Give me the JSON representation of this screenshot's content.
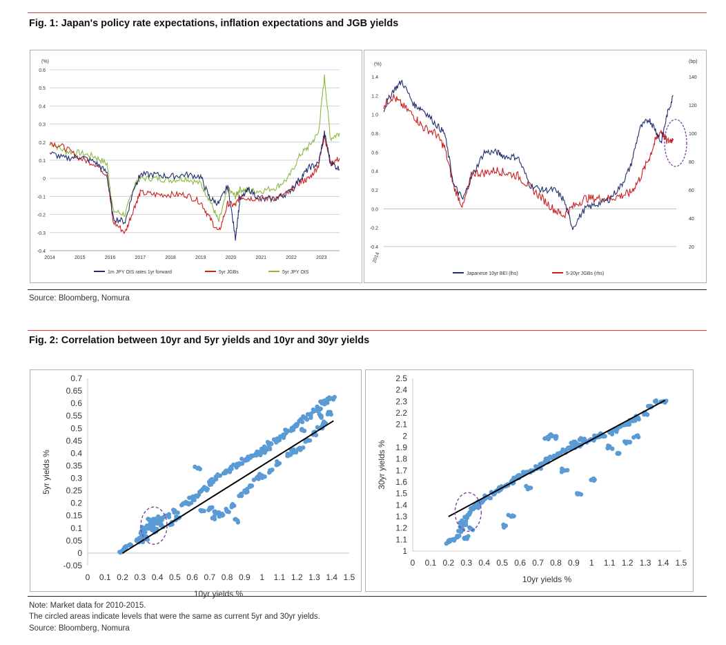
{
  "fig1": {
    "title": "Fig. 1: Japan's policy rate expectations, inflation expectations and JGB yields",
    "source": "Source: Bloomberg, Nomura"
  },
  "fig2": {
    "title": "Fig. 2: Correlation between 10yr and 5yr yields and 10yr and 30yr yields",
    "note_line1": "Note: Market data for 2010-2015.",
    "note_line2": "The circled areas indicate levels that were the same as current 5yr and 30yr yields.",
    "source": "Source: Bloomberg, Nomura"
  },
  "colors": {
    "navy": "#1f2d6b",
    "red": "#cc1f1f",
    "green": "#8ab83f",
    "scatter": "#5b9bd5",
    "circle": "#7b3fa0",
    "rule": "#d9383a"
  },
  "chart_data": [
    {
      "type": "line",
      "unit_label": "(%)",
      "x_ticks": [
        "2014",
        "2015",
        "2016",
        "2017",
        "2018",
        "2019",
        "2020",
        "2021",
        "2022",
        "2023"
      ],
      "y_ticks": [
        "0.6",
        "0.5",
        "0.4",
        "0.3",
        "0.2",
        "0.1",
        "0",
        "-0.1",
        "-0.2",
        "-0.3",
        "-0.4"
      ],
      "ylim": [
        -0.4,
        0.6
      ],
      "xlim": [
        2014,
        2023.6
      ],
      "legend": [
        "1m JPY OIS rates 1yr forward",
        "5yr JGBs",
        "5yr JPY OIS"
      ],
      "series": [
        {
          "name": "1m JPY OIS rates 1yr forward",
          "x": [
            2014,
            2014.5,
            2015,
            2015.5,
            2015.9,
            2016.1,
            2016.5,
            2016.8,
            2017,
            2017.5,
            2018,
            2018.5,
            2019,
            2019.3,
            2019.6,
            2019.9,
            2020.15,
            2020.3,
            2020.6,
            2021,
            2021.5,
            2021.9,
            2022.3,
            2022.6,
            2022.9,
            2023.1,
            2023.3,
            2023.6
          ],
          "y": [
            0.14,
            0.11,
            0.12,
            0.09,
            0.03,
            -0.22,
            -0.24,
            -0.05,
            0.02,
            0.02,
            0.01,
            0.02,
            0.01,
            -0.11,
            -0.14,
            -0.04,
            -0.33,
            -0.12,
            -0.06,
            -0.12,
            -0.11,
            -0.08,
            0.0,
            0.06,
            0.08,
            0.25,
            0.09,
            0.05
          ]
        },
        {
          "name": "5yr JGBs",
          "x": [
            2014,
            2014.5,
            2015,
            2015.5,
            2015.9,
            2016.1,
            2016.5,
            2016.8,
            2017,
            2017.5,
            2018,
            2018.5,
            2019,
            2019.3,
            2019.6,
            2019.9,
            2020.15,
            2020.3,
            2020.6,
            2021,
            2021.5,
            2021.9,
            2022.3,
            2022.6,
            2022.9,
            2023.1,
            2023.3,
            2023.6
          ],
          "y": [
            0.2,
            0.17,
            0.11,
            0.08,
            0.02,
            -0.24,
            -0.3,
            -0.16,
            -0.08,
            -0.09,
            -0.09,
            -0.09,
            -0.13,
            -0.22,
            -0.3,
            -0.14,
            -0.15,
            -0.1,
            -0.11,
            -0.11,
            -0.11,
            -0.08,
            -0.02,
            0.0,
            0.07,
            0.24,
            0.08,
            0.11
          ]
        },
        {
          "name": "5yr JPY OIS",
          "x": [
            2014,
            2014.5,
            2015,
            2015.5,
            2015.9,
            2016.1,
            2016.5,
            2016.8,
            2017,
            2017.5,
            2018,
            2018.5,
            2019,
            2019.3,
            2019.6,
            2019.9,
            2020.15,
            2020.3,
            2020.6,
            2021,
            2021.5,
            2021.9,
            2022.3,
            2022.6,
            2022.9,
            2023.1,
            2023.3,
            2023.6
          ],
          "y": [
            0.2,
            0.15,
            0.14,
            0.12,
            0.08,
            -0.18,
            -0.2,
            -0.04,
            0.0,
            0.0,
            -0.01,
            -0.0,
            -0.03,
            -0.12,
            -0.24,
            -0.06,
            -0.1,
            -0.06,
            -0.07,
            -0.07,
            -0.05,
            -0.0,
            0.13,
            0.18,
            0.25,
            0.56,
            0.22,
            0.25
          ]
        }
      ]
    },
    {
      "type": "line",
      "unit_label_left": "(%)",
      "unit_label_right": "(bp)",
      "x_ticks": [
        "2014"
      ],
      "y_ticks_left": [
        "1.4",
        "1.2",
        "1.0",
        "0.8",
        "0.6",
        "0.4",
        "0.2",
        "0.0",
        "-0.2",
        "-0.4"
      ],
      "y_ticks_right": [
        "140",
        "120",
        "100",
        "80",
        "60",
        "40",
        "20"
      ],
      "ylim_left": [
        -0.4,
        1.4
      ],
      "ylim_right": [
        20,
        140
      ],
      "legend": [
        "Japanese 10yr BEI (lhs)",
        "5-20yr JGBs (rhs)"
      ],
      "series": [
        {
          "name": "Japanese 10yr BEI (lhs)",
          "x": [
            2014,
            2014.3,
            2014.6,
            2015,
            2015.3,
            2015.7,
            2016,
            2016.3,
            2016.6,
            2016.9,
            2017.3,
            2017.7,
            2018,
            2018.4,
            2018.8,
            2019.2,
            2019.6,
            2019.9,
            2020.2,
            2020.6,
            2021,
            2021.4,
            2021.8,
            2022.1,
            2022.4,
            2022.7,
            2022.9,
            2023.1,
            2023.3,
            2023.5
          ],
          "y": [
            1.05,
            1.25,
            1.35,
            1.1,
            1.05,
            0.9,
            0.8,
            0.25,
            0.1,
            0.35,
            0.6,
            0.6,
            0.55,
            0.55,
            0.25,
            0.2,
            0.2,
            0.1,
            -0.2,
            0.0,
            0.05,
            0.1,
            0.25,
            0.45,
            0.85,
            0.95,
            0.85,
            0.7,
            1.0,
            1.2
          ]
        },
        {
          "name": "5-20yr JGBs (rhs)",
          "x": [
            2014,
            2014.3,
            2014.6,
            2015,
            2015.3,
            2015.7,
            2016,
            2016.3,
            2016.6,
            2016.9,
            2017.3,
            2017.7,
            2018,
            2018.4,
            2018.8,
            2019.2,
            2019.6,
            2019.9,
            2020.2,
            2020.6,
            2021,
            2021.4,
            2021.8,
            2022.1,
            2022.4,
            2022.7,
            2022.9,
            2023.1,
            2023.3,
            2023.5
          ],
          "y": [
            120,
            126,
            120,
            112,
            104,
            100,
            90,
            62,
            48,
            72,
            72,
            74,
            72,
            70,
            62,
            54,
            46,
            42,
            48,
            54,
            54,
            54,
            56,
            58,
            68,
            82,
            94,
            102,
            94,
            96
          ]
        }
      ]
    },
    {
      "type": "scatter",
      "title": "",
      "xlabel": "10yr yields %",
      "ylabel": "5yr yields %",
      "x_ticks": [
        "0",
        "0.1",
        "0.2",
        "0.3",
        "0.4",
        "0.5",
        "0.6",
        "0.7",
        "0.8",
        "0.9",
        "1",
        "1.1",
        "1.2",
        "1.3",
        "1.4",
        "1.5"
      ],
      "y_ticks": [
        "0.7",
        "0.65",
        "0.6",
        "0.55",
        "0.5",
        "0.45",
        "0.4",
        "0.35",
        "0.3",
        "0.25",
        "0.2",
        "0.15",
        "0.1",
        "0.05",
        "0",
        "-0.05"
      ],
      "xlim": [
        0,
        1.5
      ],
      "ylim": [
        -0.05,
        0.7
      ],
      "trendline": {
        "x": [
          0.2,
          1.41
        ],
        "y": [
          0.0,
          0.53
        ]
      },
      "x": [
        0.2,
        0.22,
        0.25,
        0.28,
        0.3,
        0.32,
        0.33,
        0.35,
        0.37,
        0.38,
        0.4,
        0.42,
        0.45,
        0.5,
        0.55,
        0.6,
        0.62,
        0.65,
        0.68,
        0.7,
        0.72,
        0.75,
        0.78,
        0.8,
        0.82,
        0.85,
        0.87,
        0.9,
        0.92,
        0.95,
        0.98,
        1.0,
        1.03,
        1.05,
        1.08,
        1.1,
        1.12,
        1.15,
        1.18,
        1.2,
        1.22,
        1.25,
        1.28,
        1.3,
        1.32,
        1.35,
        1.37,
        1.4,
        0.66,
        0.7,
        0.74,
        0.77,
        0.8,
        0.84,
        0.88,
        0.9,
        0.93,
        0.97,
        1.0,
        1.05,
        1.1,
        1.15,
        1.18,
        1.22,
        1.26,
        1.3,
        1.33,
        1.36,
        0.3,
        0.34,
        0.38,
        0.4,
        0.36,
        0.42,
        0.48,
        0.52,
        0.58,
        0.63,
        0.72,
        0.86,
        1.24,
        1.34,
        1.38
      ],
      "y": [
        0.01,
        0.02,
        0.03,
        0.05,
        0.06,
        0.08,
        0.1,
        0.11,
        0.12,
        0.1,
        0.13,
        0.14,
        0.15,
        0.17,
        0.2,
        0.22,
        0.23,
        0.25,
        0.26,
        0.28,
        0.29,
        0.31,
        0.32,
        0.33,
        0.34,
        0.35,
        0.36,
        0.37,
        0.38,
        0.39,
        0.4,
        0.41,
        0.42,
        0.44,
        0.45,
        0.46,
        0.47,
        0.49,
        0.5,
        0.51,
        0.53,
        0.54,
        0.55,
        0.57,
        0.58,
        0.6,
        0.61,
        0.62,
        0.17,
        0.18,
        0.16,
        0.15,
        0.17,
        0.19,
        0.23,
        0.25,
        0.27,
        0.3,
        0.31,
        0.33,
        0.36,
        0.39,
        0.41,
        0.42,
        0.45,
        0.48,
        0.5,
        0.52,
        0.05,
        0.06,
        0.09,
        0.12,
        0.13,
        0.11,
        0.12,
        0.14,
        0.2,
        0.34,
        0.14,
        0.13,
        0.49,
        0.55,
        0.56
      ]
    },
    {
      "type": "scatter",
      "title": "",
      "xlabel": "10yr yields %",
      "ylabel": "30yr yields %",
      "x_ticks": [
        "0",
        "0.1",
        "0.2",
        "0.3",
        "0.4",
        "0.5",
        "0.6",
        "0.7",
        "0.8",
        "0.9",
        "1",
        "1.1",
        "1.2",
        "1.3",
        "1.4",
        "1.5"
      ],
      "y_ticks": [
        "2.5",
        "2.4",
        "2.3",
        "2.2",
        "2.1",
        "2",
        "1.9",
        "1.8",
        "1.7",
        "1.6",
        "1.5",
        "1.4",
        "1.3",
        "1.2",
        "1.1",
        "1"
      ],
      "xlim": [
        0,
        1.5
      ],
      "ylim": [
        1.0,
        2.5
      ],
      "trendline": {
        "x": [
          0.2,
          1.41
        ],
        "y": [
          1.3,
          2.31
        ]
      },
      "x": [
        0.2,
        0.22,
        0.25,
        0.27,
        0.28,
        0.3,
        0.32,
        0.34,
        0.36,
        0.38,
        0.4,
        0.42,
        0.45,
        0.48,
        0.5,
        0.52,
        0.55,
        0.58,
        0.6,
        0.63,
        0.66,
        0.7,
        0.72,
        0.74,
        0.76,
        0.78,
        0.8,
        0.82,
        0.85,
        0.88,
        0.9,
        0.93,
        0.96,
        1.0,
        1.03,
        1.06,
        1.1,
        1.13,
        1.16,
        1.2,
        1.23,
        1.26,
        1.3,
        1.33,
        1.36,
        1.4,
        0.75,
        0.78,
        0.8,
        0.9,
        0.95,
        1.05,
        1.1,
        1.15,
        1.2,
        1.25,
        0.52,
        0.55,
        0.65,
        0.85,
        0.93,
        1.0,
        0.3,
        0.32,
        0.35,
        0.28
      ],
      "y": [
        1.08,
        1.1,
        1.12,
        1.18,
        1.25,
        1.3,
        1.33,
        1.37,
        1.4,
        1.42,
        1.45,
        1.47,
        1.5,
        1.52,
        1.55,
        1.57,
        1.6,
        1.63,
        1.65,
        1.68,
        1.7,
        1.73,
        1.76,
        1.78,
        1.8,
        1.81,
        1.83,
        1.85,
        1.87,
        1.89,
        1.9,
        1.92,
        1.95,
        1.97,
        1.99,
        2.01,
        2.03,
        2.05,
        2.08,
        2.1,
        2.13,
        2.16,
        2.2,
        2.25,
        2.3,
        2.3,
        1.98,
        2.0,
        1.99,
        1.95,
        1.97,
        2.0,
        1.9,
        1.85,
        1.95,
        2.0,
        1.22,
        1.3,
        1.55,
        1.7,
        1.5,
        1.62,
        1.12,
        1.2,
        1.38,
        1.22
      ]
    }
  ]
}
